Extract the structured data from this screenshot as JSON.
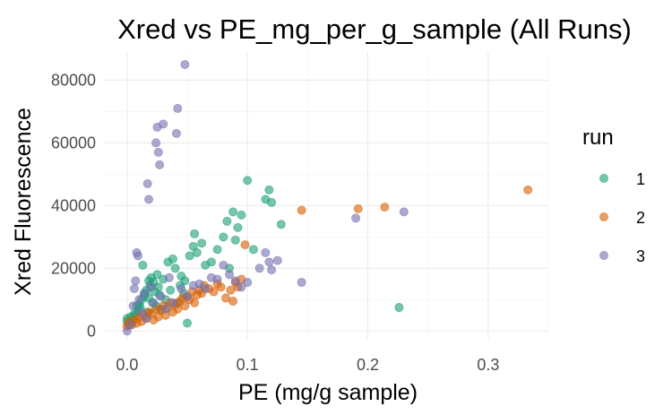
{
  "chart_data": {
    "type": "scatter",
    "title": "Xred vs PE_mg_per_g_sample (All Runs)",
    "xlabel": "PE (mg/g sample)",
    "ylabel": "Xred Fluorescence",
    "xlim": [
      -0.02,
      0.35
    ],
    "ylim": [
      -2500,
      89000
    ],
    "x_ticks": [
      0.0,
      0.1,
      0.2,
      0.3
    ],
    "x_tick_labels": [
      "0.0",
      "0.1",
      "0.2",
      "0.3"
    ],
    "y_ticks": [
      0,
      20000,
      40000,
      60000,
      80000
    ],
    "y_tick_labels": [
      "0",
      "20000",
      "40000",
      "60000",
      "80000"
    ],
    "grid": true,
    "legend": {
      "title": "run",
      "position": "right"
    },
    "point_opacity": 0.6,
    "series": [
      {
        "name": "1",
        "color": "#1b9e77",
        "points": [
          [
            0.0,
            4000
          ],
          [
            0.0,
            3000
          ],
          [
            0.002,
            2500
          ],
          [
            0.003,
            4500
          ],
          [
            0.004,
            3500
          ],
          [
            0.006,
            5500
          ],
          [
            0.007,
            5000
          ],
          [
            0.008,
            8000
          ],
          [
            0.009,
            6500
          ],
          [
            0.01,
            8500
          ],
          [
            0.011,
            7500
          ],
          [
            0.012,
            10000
          ],
          [
            0.013,
            21000
          ],
          [
            0.014,
            11000
          ],
          [
            0.015,
            12000
          ],
          [
            0.016,
            13000
          ],
          [
            0.017,
            6000
          ],
          [
            0.018,
            16000
          ],
          [
            0.018,
            10500
          ],
          [
            0.019,
            14500
          ],
          [
            0.02,
            17000
          ],
          [
            0.021,
            9000
          ],
          [
            0.022,
            15500
          ],
          [
            0.023,
            12500
          ],
          [
            0.024,
            8000
          ],
          [
            0.025,
            18000
          ],
          [
            0.026,
            14000
          ],
          [
            0.027,
            11500
          ],
          [
            0.028,
            7000
          ],
          [
            0.03,
            16500
          ],
          [
            0.032,
            10000
          ],
          [
            0.034,
            22000
          ],
          [
            0.036,
            13000
          ],
          [
            0.038,
            23000
          ],
          [
            0.04,
            20000
          ],
          [
            0.042,
            9000
          ],
          [
            0.044,
            14500
          ],
          [
            0.045,
            17500
          ],
          [
            0.047,
            12000
          ],
          [
            0.048,
            16000
          ],
          [
            0.05,
            2500
          ],
          [
            0.052,
            24000
          ],
          [
            0.055,
            27000
          ],
          [
            0.056,
            31000
          ],
          [
            0.058,
            25000
          ],
          [
            0.062,
            28000
          ],
          [
            0.065,
            21000
          ],
          [
            0.07,
            22000
          ],
          [
            0.075,
            26000
          ],
          [
            0.08,
            30000
          ],
          [
            0.083,
            35000
          ],
          [
            0.085,
            20000
          ],
          [
            0.088,
            38000
          ],
          [
            0.09,
            29000
          ],
          [
            0.092,
            33000
          ],
          [
            0.095,
            37000
          ],
          [
            0.1,
            48000
          ],
          [
            0.105,
            26000
          ],
          [
            0.115,
            42000
          ],
          [
            0.118,
            45000
          ],
          [
            0.12,
            41000
          ],
          [
            0.128,
            34000
          ],
          [
            0.226,
            7500
          ]
        ]
      },
      {
        "name": "2",
        "color": "#d95f02",
        "points": [
          [
            0.0,
            1500
          ],
          [
            0.001,
            2000
          ],
          [
            0.002,
            3000
          ],
          [
            0.004,
            2000
          ],
          [
            0.006,
            3500
          ],
          [
            0.008,
            2500
          ],
          [
            0.01,
            4500
          ],
          [
            0.012,
            3000
          ],
          [
            0.014,
            5000
          ],
          [
            0.016,
            4000
          ],
          [
            0.018,
            6000
          ],
          [
            0.02,
            5500
          ],
          [
            0.022,
            3500
          ],
          [
            0.024,
            7000
          ],
          [
            0.026,
            4500
          ],
          [
            0.028,
            6500
          ],
          [
            0.03,
            8000
          ],
          [
            0.032,
            5000
          ],
          [
            0.034,
            7500
          ],
          [
            0.036,
            9000
          ],
          [
            0.038,
            6000
          ],
          [
            0.04,
            8500
          ],
          [
            0.042,
            7000
          ],
          [
            0.044,
            9500
          ],
          [
            0.046,
            10500
          ],
          [
            0.048,
            8000
          ],
          [
            0.05,
            11000
          ],
          [
            0.052,
            10000
          ],
          [
            0.054,
            12500
          ],
          [
            0.056,
            9000
          ],
          [
            0.058,
            11500
          ],
          [
            0.06,
            13000
          ],
          [
            0.062,
            12000
          ],
          [
            0.064,
            14500
          ],
          [
            0.068,
            13500
          ],
          [
            0.072,
            12500
          ],
          [
            0.075,
            15000
          ],
          [
            0.078,
            14000
          ],
          [
            0.082,
            10500
          ],
          [
            0.086,
            13000
          ],
          [
            0.088,
            9500
          ],
          [
            0.09,
            15500
          ],
          [
            0.092,
            14000
          ],
          [
            0.095,
            16500
          ],
          [
            0.098,
            27500
          ],
          [
            0.145,
            38500
          ],
          [
            0.192,
            39000
          ],
          [
            0.214,
            39500
          ],
          [
            0.333,
            45000
          ]
        ]
      },
      {
        "name": "3",
        "color": "#7570b3",
        "points": [
          [
            0.0,
            0
          ],
          [
            0.003,
            2000
          ],
          [
            0.005,
            8000
          ],
          [
            0.006,
            13500
          ],
          [
            0.007,
            16000
          ],
          [
            0.008,
            25000
          ],
          [
            0.009,
            24000
          ],
          [
            0.01,
            10000
          ],
          [
            0.012,
            6000
          ],
          [
            0.014,
            12000
          ],
          [
            0.016,
            4000
          ],
          [
            0.017,
            47000
          ],
          [
            0.018,
            42000
          ],
          [
            0.02,
            14000
          ],
          [
            0.022,
            9000
          ],
          [
            0.024,
            60000
          ],
          [
            0.025,
            65000
          ],
          [
            0.026,
            57000
          ],
          [
            0.027,
            53000
          ],
          [
            0.028,
            11000
          ],
          [
            0.03,
            66000
          ],
          [
            0.032,
            7000
          ],
          [
            0.035,
            17000
          ],
          [
            0.038,
            9000
          ],
          [
            0.041,
            63000
          ],
          [
            0.042,
            71000
          ],
          [
            0.045,
            13500
          ],
          [
            0.048,
            85000
          ],
          [
            0.05,
            11000
          ],
          [
            0.055,
            14500
          ],
          [
            0.06,
            15000
          ],
          [
            0.065,
            13500
          ],
          [
            0.07,
            17000
          ],
          [
            0.075,
            16500
          ],
          [
            0.08,
            21000
          ],
          [
            0.085,
            18000
          ],
          [
            0.09,
            16000
          ],
          [
            0.095,
            14000
          ],
          [
            0.1,
            15500
          ],
          [
            0.11,
            20000
          ],
          [
            0.115,
            25000
          ],
          [
            0.118,
            22000
          ],
          [
            0.12,
            19500
          ],
          [
            0.125,
            22500
          ],
          [
            0.145,
            15500
          ],
          [
            0.19,
            36000
          ],
          [
            0.23,
            38000
          ]
        ]
      }
    ]
  }
}
